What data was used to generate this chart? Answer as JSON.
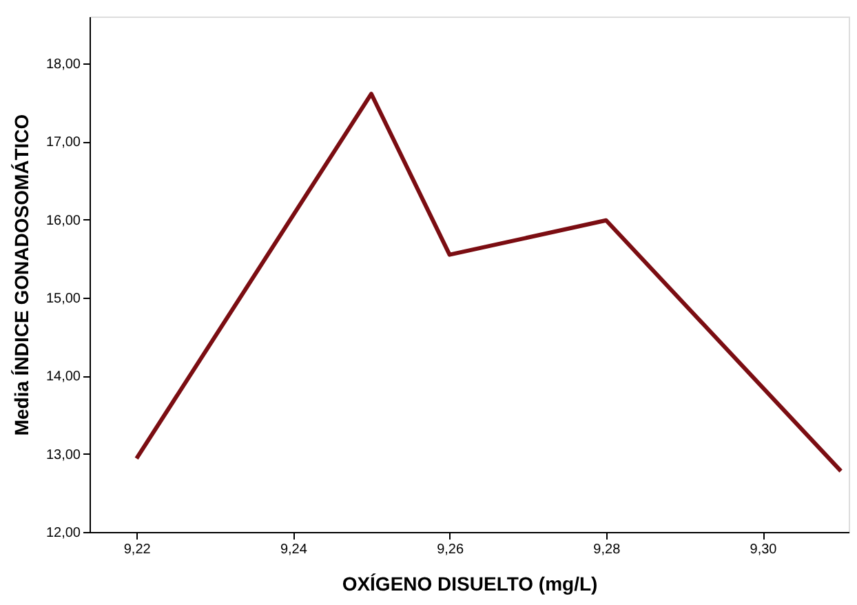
{
  "chart_data": {
    "type": "line",
    "xlabel": "OXÍGENO DISUELTO (mg/L)",
    "ylabel": "Media ÍNDICE GONADOSOMÁTICO",
    "x": [
      9.22,
      9.25,
      9.26,
      9.28,
      9.31
    ],
    "series": [
      {
        "color": "#7b0d12",
        "values": [
          12.94,
          17.61,
          15.55,
          15.99,
          12.78
        ]
      }
    ],
    "xlim": [
      9.214,
      9.311
    ],
    "xticks": [
      {
        "value": 9.22,
        "label": "9,22"
      },
      {
        "value": 9.24,
        "label": "9,24"
      },
      {
        "value": 9.26,
        "label": "9,26"
      },
      {
        "value": 9.28,
        "label": "9,28"
      },
      {
        "value": 9.3,
        "label": "9,30"
      }
    ],
    "ylim": [
      12,
      18.6
    ],
    "yticks": [
      {
        "value": 12,
        "label": "12,00"
      },
      {
        "value": 13,
        "label": "13,00"
      },
      {
        "value": 14,
        "label": "14,00"
      },
      {
        "value": 15,
        "label": "15,00"
      },
      {
        "value": 16,
        "label": "16,00"
      },
      {
        "value": 17,
        "label": "17,00"
      },
      {
        "value": 18,
        "label": "18,00"
      }
    ],
    "grid": false,
    "marker": "none",
    "line_style": "solid",
    "legend": false
  }
}
